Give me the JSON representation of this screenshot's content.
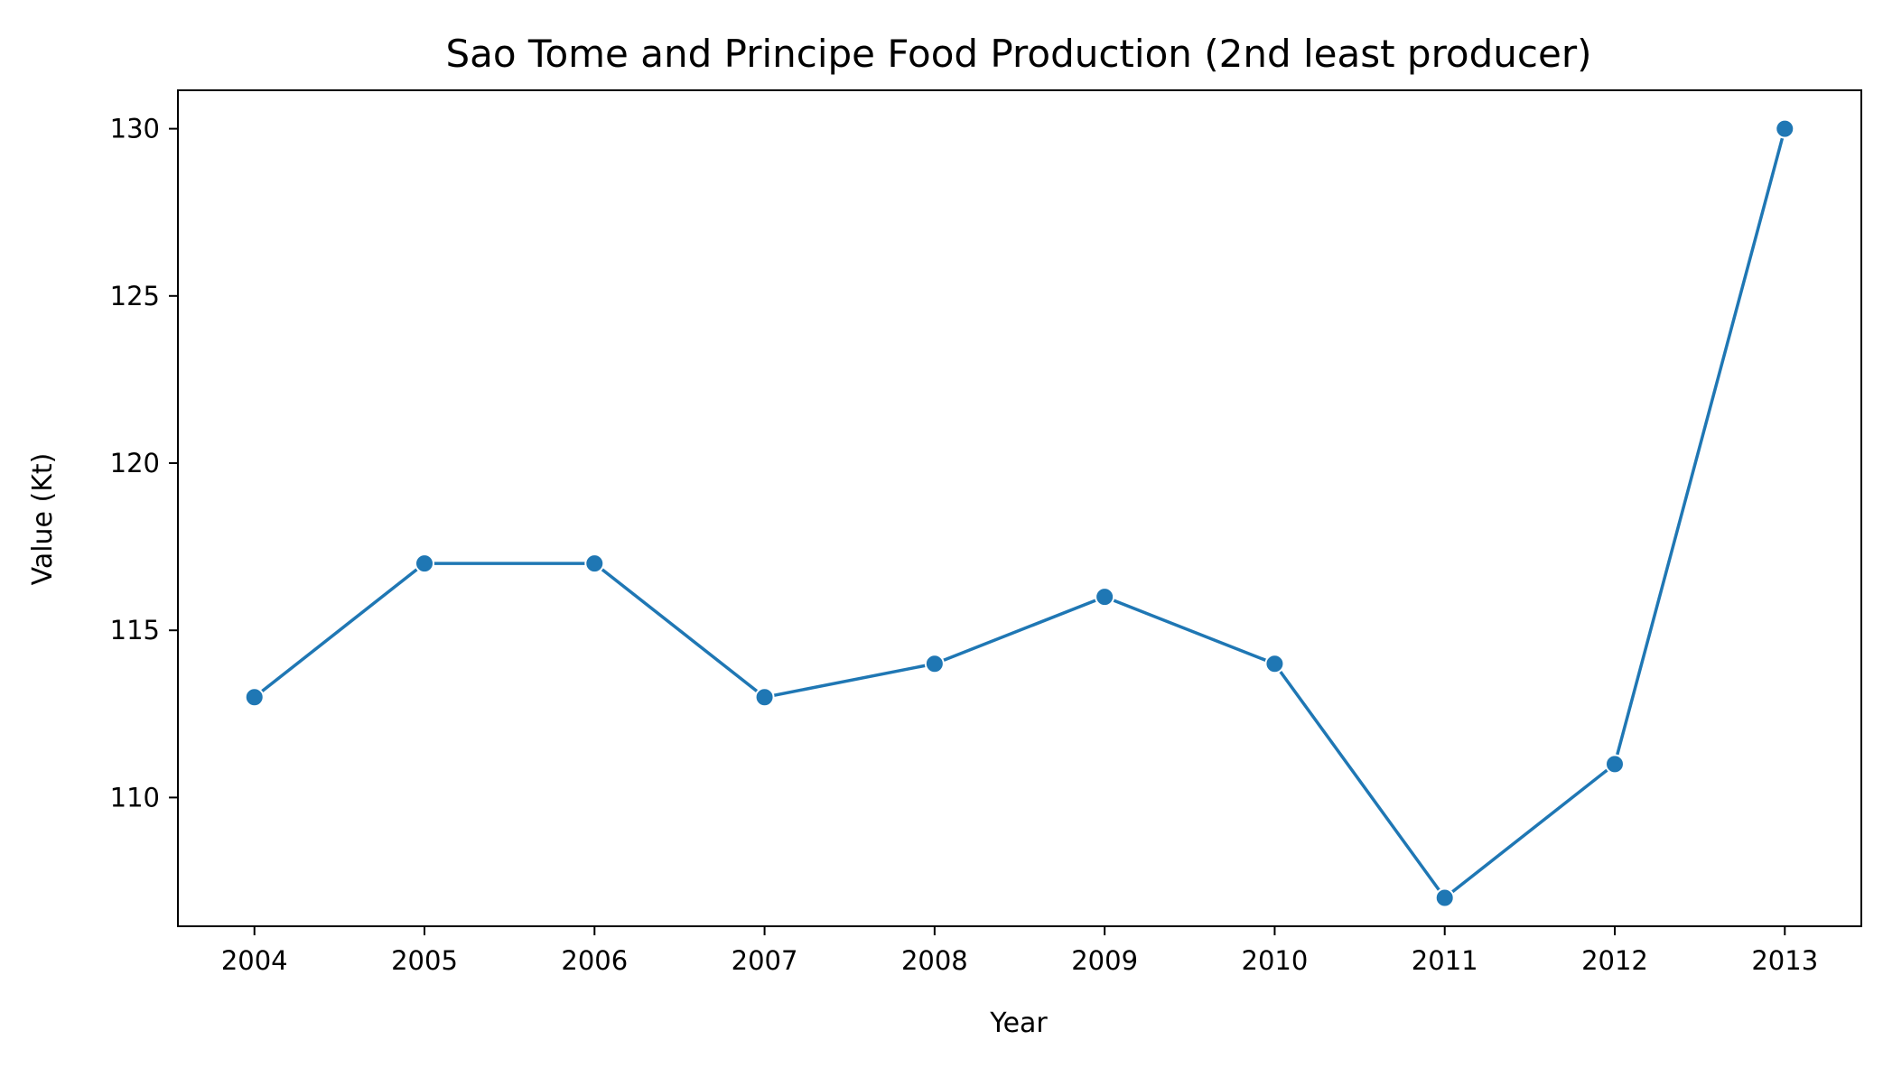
{
  "chart_data": {
    "type": "line",
    "title": "Sao Tome and Principe Food Production (2nd least producer)",
    "xlabel": "Year",
    "ylabel": "Value (Kt)",
    "x": [
      2004,
      2005,
      2006,
      2007,
      2008,
      2009,
      2010,
      2011,
      2012,
      2013
    ],
    "y": [
      113,
      117,
      117,
      113,
      114,
      116,
      114,
      107,
      111,
      130
    ],
    "x_ticks": [
      "2004",
      "2005",
      "2006",
      "2007",
      "2008",
      "2009",
      "2010",
      "2011",
      "2012",
      "2013"
    ],
    "y_ticks": [
      110,
      115,
      120,
      125,
      130
    ],
    "xlim": [
      2003.55,
      2013.45
    ],
    "ylim": [
      106.15,
      131.15
    ],
    "grid": false,
    "legend": "none",
    "series_color": "#1f77b4",
    "marker": "circle"
  }
}
